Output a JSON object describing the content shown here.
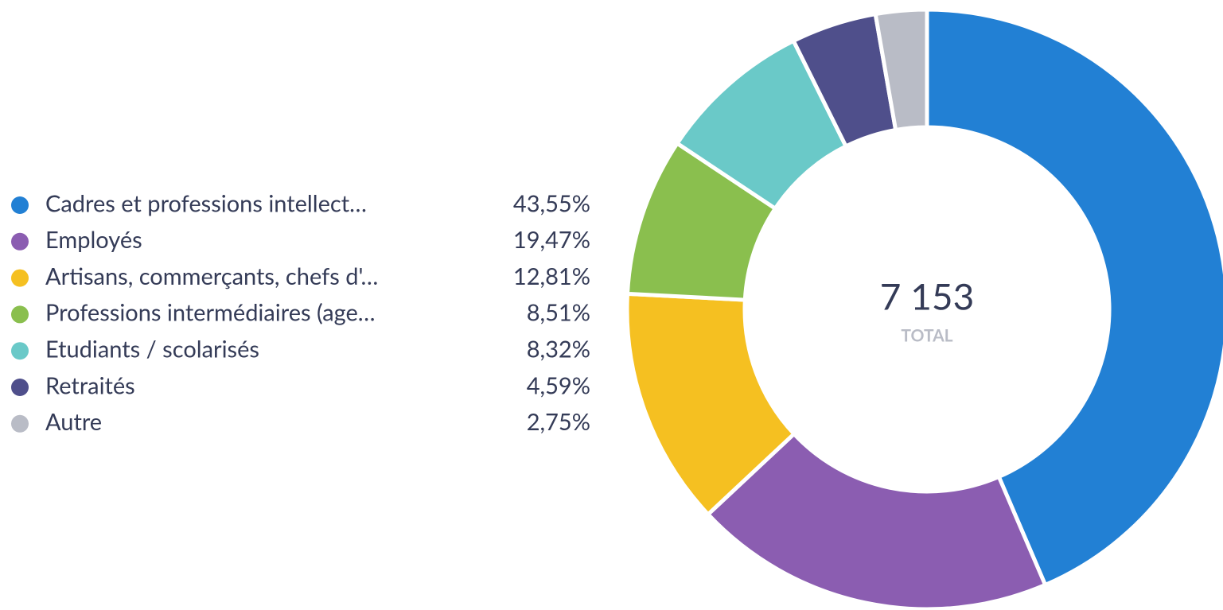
{
  "chart_data": {
    "type": "donut",
    "categories": [
      "Cadres et professions intellect…",
      "Employés",
      "Artisans, commerçants, chefs d'…",
      "Professions intermédiaires (age…",
      "Etudiants / scolarisés",
      "Retraités",
      "Autre"
    ],
    "values": [
      43.55,
      19.47,
      12.81,
      8.51,
      8.32,
      4.59,
      2.75
    ],
    "value_labels": [
      "43,55%",
      "19,47%",
      "12,81%",
      "8,51%",
      "8,32%",
      "4,59%",
      "2,75%"
    ],
    "colors": [
      "#2280d4",
      "#8b5db1",
      "#f5c021",
      "#8abf4e",
      "#6ac9c8",
      "#4f4f8b",
      "#b9bcc6"
    ],
    "center_text": "7 153",
    "center_subtext": "TOTAL",
    "legend": "left"
  }
}
